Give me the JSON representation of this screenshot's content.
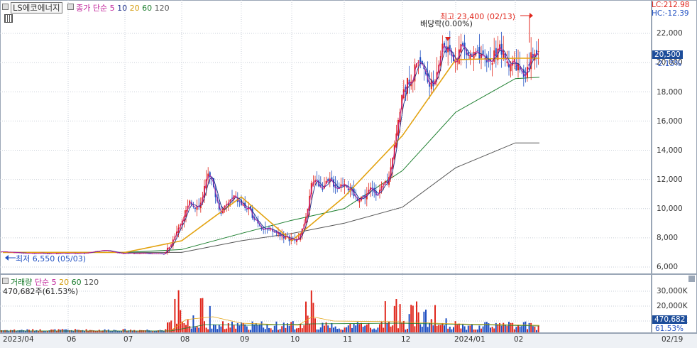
{
  "header": {
    "stock_name": "LS에코에너지",
    "legend_label": "종가 단순",
    "ma": [
      "5",
      "10",
      "20",
      "60",
      "120"
    ],
    "lc": "LC:212.98",
    "hc": "HC:-12.39"
  },
  "annotations": {
    "high": "최고 23,400 (02/13)",
    "low": "최저 6,550 (05/03)",
    "dividend": "배당락(0.00%)"
  },
  "price_axis": [
    "22,000",
    "20,000",
    "18,000",
    "16,000",
    "14,000",
    "12,000",
    "10,000",
    "8,000",
    "6,000"
  ],
  "current_price": "20,500",
  "change_pct": "-2.15%",
  "volume_header": {
    "label": "거래량",
    "legend_label": "단순",
    "ma": [
      "5",
      "20",
      "60",
      "120"
    ],
    "current": "470,682주(61.53%)"
  },
  "volume_axis": [
    "30,000K",
    "20,000K",
    "10,000K"
  ],
  "volume_current": "470,682",
  "volume_pct": "61.53%",
  "date_axis": [
    "2023/04",
    "06",
    "07",
    "08",
    "09",
    "10",
    "11",
    "12",
    "2024/01",
    "02",
    "02/19"
  ],
  "colors": {
    "up": "#e0261c",
    "down": "#1f4fc2",
    "ma5": "#c0229a",
    "ma10": "#1d2f8c",
    "ma20": "#e3a311",
    "ma60": "#1a7d2c",
    "ma120": "#555555"
  },
  "chart_data": {
    "type": "candlestick",
    "title": "LS에코에너지",
    "y_range": [
      6000,
      23400
    ],
    "high": {
      "value": 23400,
      "date": "02/13"
    },
    "low": {
      "value": 6550,
      "date": "05/03"
    },
    "last_close": 20500,
    "change_pct": -2.15,
    "series": [
      {
        "name": "20",
        "x": [
          "2023/04",
          "06",
          "07",
          "08",
          "09",
          "10",
          "11",
          "12",
          "2024/01",
          "02"
        ],
        "values": [
          7000,
          7000,
          7000,
          7800,
          10800,
          7800,
          10800,
          15000,
          20200,
          20300
        ]
      },
      {
        "name": "60",
        "x": [
          "2023/04",
          "06",
          "07",
          "08",
          "09",
          "10",
          "11",
          "12",
          "2024/01",
          "02"
        ],
        "values": [
          7000,
          7000,
          7000,
          7200,
          8300,
          9200,
          10000,
          12600,
          16600,
          18900
        ]
      },
      {
        "name": "120",
        "x": [
          "2023/04",
          "06",
          "07",
          "08",
          "09",
          "10",
          "11",
          "12",
          "2024/01",
          "02"
        ],
        "values": [
          7000,
          7000,
          7000,
          7000,
          7800,
          8300,
          9000,
          10100,
          12800,
          14500
        ]
      }
    ]
  }
}
